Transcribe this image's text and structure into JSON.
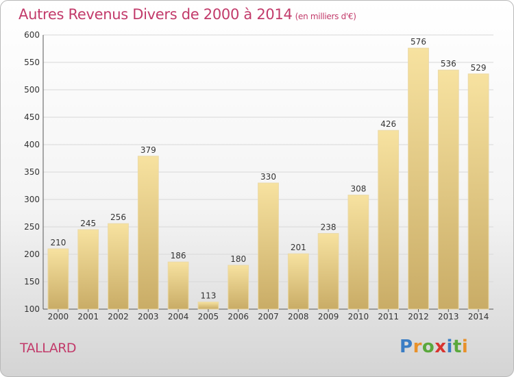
{
  "title": "Autres Revenus Divers de 2000 à 2014",
  "subtitle": "(en milliers d'€)",
  "commune": "TALLARD",
  "logo": {
    "text": "Proxiti",
    "colors": [
      "#3a7dc4",
      "#e8912a",
      "#5aa83c",
      "#d8342f",
      "#3a7dc4",
      "#5aa83c",
      "#e8912a"
    ]
  },
  "colors": {
    "title": "#c23a6a",
    "bar_light": "#f7e2a0",
    "bar_dark": "#c9ac66",
    "grid": "#d8d8d8"
  },
  "chart_data": {
    "type": "bar",
    "categories": [
      "2000",
      "2001",
      "2002",
      "2003",
      "2004",
      "2005",
      "2006",
      "2007",
      "2008",
      "2009",
      "2010",
      "2011",
      "2012",
      "2013",
      "2014"
    ],
    "values": [
      210,
      245,
      256,
      379,
      186,
      113,
      180,
      330,
      201,
      238,
      308,
      426,
      576,
      536,
      529
    ],
    "ylim": [
      100,
      600
    ],
    "yticks": [
      100,
      150,
      200,
      250,
      300,
      350,
      400,
      450,
      500,
      550,
      600
    ],
    "grid": true,
    "xlabel": "",
    "ylabel": ""
  }
}
